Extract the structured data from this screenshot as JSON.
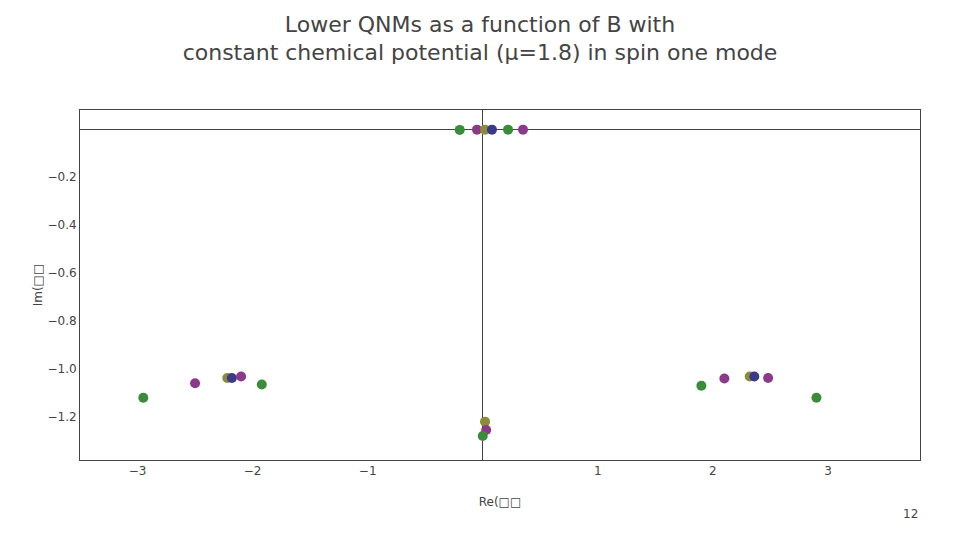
{
  "chart_data": {
    "type": "scatter",
    "title": "Lower QNMs as a function of B with\nconstant chemical potential (μ=1.8) in spin one mode",
    "x_label": "Re(□□",
    "y_label": "Im(□□",
    "x": [
      -0.2,
      -0.05,
      0.02,
      0.08,
      0.22,
      0.35,
      -2.95,
      -2.5,
      -2.22,
      -2.18,
      -2.1,
      -1.92,
      0.02,
      0.03,
      0.0,
      1.9,
      2.1,
      2.32,
      2.36,
      2.48,
      2.9
    ],
    "values": [
      -0.003,
      -0.002,
      -0.002,
      -0.002,
      -0.002,
      -0.002,
      -1.12,
      -1.06,
      -1.038,
      -1.038,
      -1.032,
      -1.065,
      -1.22,
      -1.255,
      -1.28,
      -1.07,
      -1.04,
      -1.032,
      -1.032,
      -1.038,
      -1.12
    ],
    "colors": [
      "#3a8c3a",
      "#8b3a8b",
      "#8b8b3a",
      "#3a3a8b",
      "#3a8c3a",
      "#8b3a8b",
      "#3a8c3a",
      "#8b3a8b",
      "#8b8b3a",
      "#3a3a8b",
      "#8b3a8b",
      "#3a8c3a",
      "#8b8b3a",
      "#8b3a8b",
      "#3a8c3a",
      "#3a8c3a",
      "#8b3a8b",
      "#8b8b3a",
      "#3a3a8b",
      "#8b3a8b",
      "#3a8c3a"
    ],
    "marker": "circle",
    "xlim": [
      -3.5,
      3.8
    ],
    "ylim": [
      -1.38,
      0.08
    ],
    "xticks": [
      {
        "value": -3,
        "label": "−3"
      },
      {
        "value": -2,
        "label": "−2"
      },
      {
        "value": -1,
        "label": "−1"
      },
      1,
      2,
      3
    ],
    "yticks": [
      {
        "value": -1.2,
        "label": "−1.2"
      },
      {
        "value": -1.0,
        "label": "−1.0"
      },
      {
        "value": -0.8,
        "label": "−0.8"
      },
      {
        "value": -0.6,
        "label": "−0.6"
      },
      {
        "value": -0.4,
        "label": "−0.4"
      },
      {
        "value": -0.2,
        "label": "−0.2"
      }
    ],
    "grid": false,
    "annotations": [
      {
        "text": "12"
      }
    ]
  }
}
